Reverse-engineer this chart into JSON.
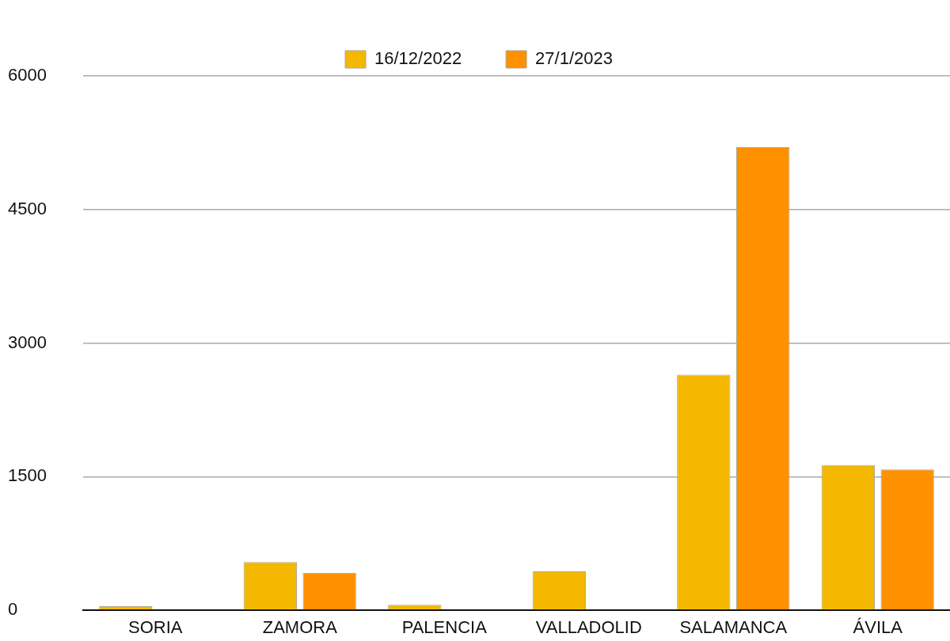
{
  "chart_data": {
    "type": "bar",
    "categories": [
      "SORIA",
      "ZAMORA",
      "PALENCIA",
      "VALLADOLID",
      "SALAMANCA",
      "ÁVILA"
    ],
    "series": [
      {
        "name": "16/12/2022",
        "color": "#f4b800",
        "values": [
          45,
          540,
          60,
          435,
          2645,
          1630
        ]
      },
      {
        "name": "27/1/2023",
        "color": "#ff9000",
        "values": [
          0,
          420,
          0,
          0,
          5200,
          1580
        ]
      }
    ],
    "ylim": [
      0,
      6000
    ],
    "yticks": [
      0,
      1500,
      3000,
      4500,
      6000
    ],
    "grid": "y",
    "legend": "top"
  }
}
